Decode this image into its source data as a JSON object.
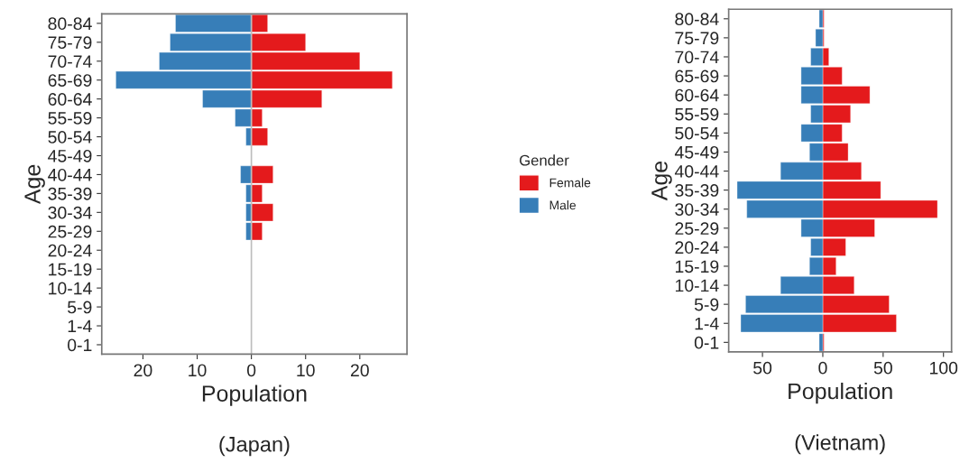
{
  "chart_data": [
    {
      "type": "bar",
      "orientation": "horizontal",
      "stacked": true,
      "xlabel": "Population",
      "ylabel": "Age",
      "legend": "right",
      "legend_title": "Gender",
      "categories": [
        "80-84",
        "75-79",
        "70-74",
        "65-69",
        "60-64",
        "55-59",
        "50-54",
        "45-49",
        "40-44",
        "35-39",
        "30-34",
        "25-29",
        "20-24",
        "15-19",
        "10-14",
        "5-9",
        "1-4",
        "0-1"
      ],
      "series": [
        {
          "name": "Female",
          "color": "#e41a1c",
          "values": [
            3,
            10,
            20,
            26,
            13,
            2,
            3,
            null,
            4,
            2,
            4,
            2,
            null,
            null,
            null,
            null,
            null,
            null
          ]
        },
        {
          "name": "Male",
          "color": "#377eb8",
          "values": [
            -14,
            -15,
            -17,
            -25,
            -9,
            -3,
            -1,
            null,
            -2,
            -1,
            -1,
            -1,
            null,
            null,
            null,
            null,
            null,
            null
          ]
        }
      ],
      "xlim": [
        -27.6,
        28.7
      ],
      "xticks": [
        {
          "value": -20,
          "label": "20"
        },
        {
          "value": -10,
          "label": "10"
        },
        0,
        10,
        20
      ],
      "ref_lines": [
        {
          "axis": "x",
          "value": 0,
          "color": "#bdbdbd"
        }
      ],
      "annotations": [
        "(Japan)"
      ]
    },
    {
      "type": "bar",
      "orientation": "horizontal",
      "stacked": true,
      "xlabel": "Population",
      "ylabel": "Age",
      "categories": [
        "80-84",
        "75-79",
        "70-74",
        "65-69",
        "60-64",
        "55-59",
        "50-54",
        "45-49",
        "40-44",
        "35-39",
        "30-34",
        "25-29",
        "20-24",
        "15-19",
        "10-14",
        "5-9",
        "1-4",
        "0-1"
      ],
      "series": [
        {
          "color": "#e41a1c",
          "values": [
            1,
            1,
            5,
            16,
            39,
            23,
            16,
            21,
            32,
            48,
            95,
            43,
            19,
            11,
            26,
            55,
            61,
            1
          ]
        },
        {
          "color": "#377eb8",
          "values": [
            -3,
            -6,
            -10,
            -18,
            -18,
            -10,
            -18,
            -11,
            -35,
            -71,
            -63,
            -18,
            -10,
            -11,
            -35,
            -64,
            -68,
            -3
          ]
        }
      ],
      "xlim": [
        -78,
        106.7
      ],
      "xticks": [
        {
          "value": -50,
          "label": "50"
        },
        0,
        50,
        100
      ],
      "annotations": [
        "(Vietnam)"
      ]
    }
  ]
}
